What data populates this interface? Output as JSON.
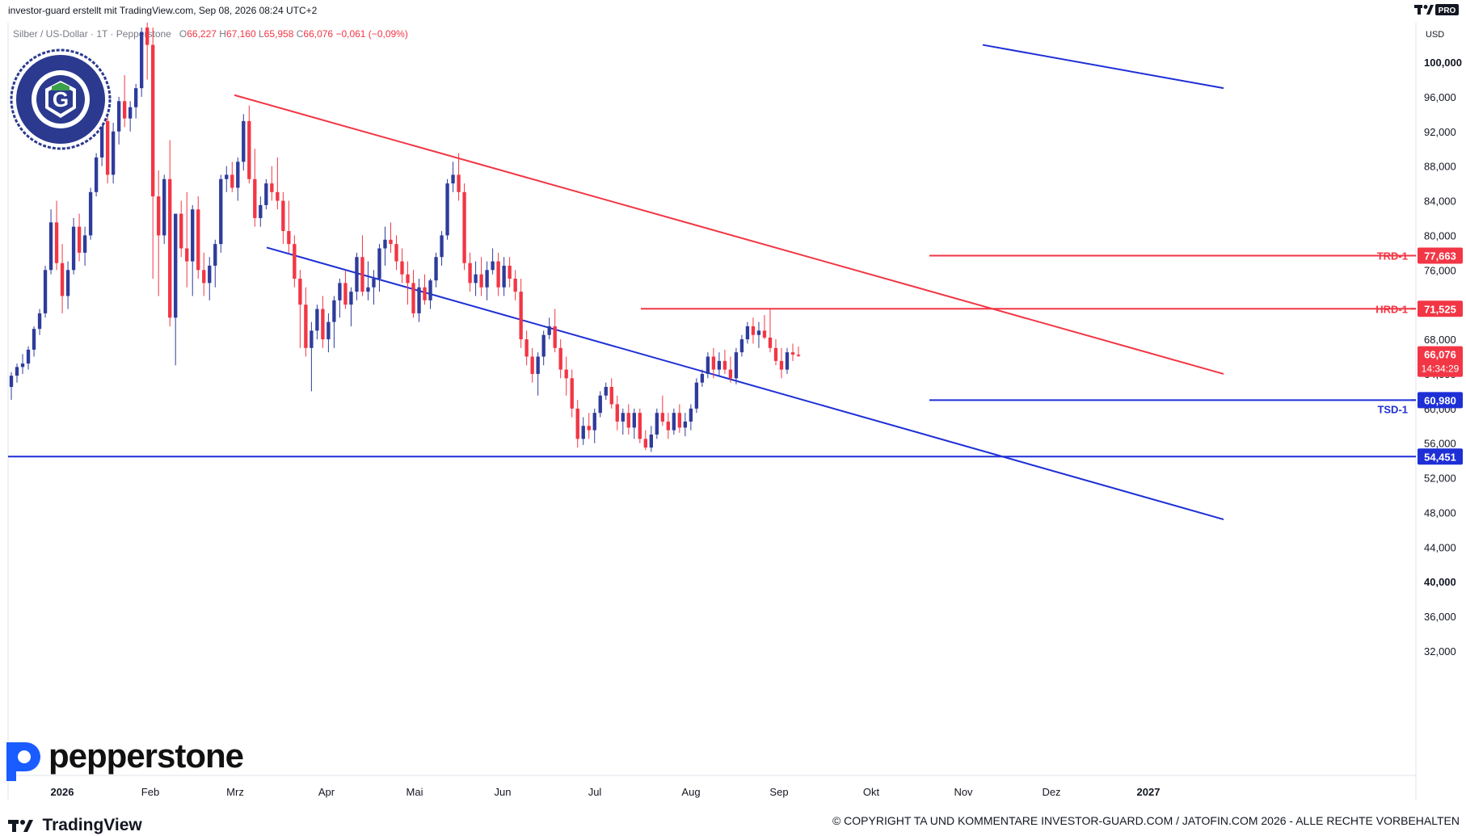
{
  "header": {
    "attribution": "investor-guard erstellt mit TradingView.com, Sep 08, 2026 08:24 UTC+2",
    "symbol": "Silber / US-Dollar · 1T · Pepperstone",
    "ohlc": {
      "o_label": "O",
      "o": "66,227",
      "h_label": "H",
      "h": "67,160",
      "l_label": "L",
      "l": "65,958",
      "c_label": "C",
      "c": "66,076",
      "change": "−0,061 (−0,09%)"
    },
    "pro_badge": "PRO",
    "currency": "USD"
  },
  "branding": {
    "broker": "pepperstone",
    "platform": "TradingView",
    "badge_text": "COMPLIANCE CHECKED · INVESTOR-GUARD",
    "badge_letter": "G",
    "copyright": "© COPYRIGHT TA UND KOMMENTARE INVESTOR-GUARD.COM / JATOFIN.COM 2026 - ALLE RECHTE VORBEHALTEN"
  },
  "colors": {
    "up": "#2e3c9b",
    "down": "#f23645",
    "resistance": "#f23645",
    "support": "#1e2fd6",
    "grid_text": "#131722"
  },
  "chart_data": {
    "type": "candlestick",
    "ylim": [
      30000,
      102000
    ],
    "yticks": [
      "100,000",
      "96,000",
      "92,000",
      "88,000",
      "84,000",
      "80,000",
      "76,000",
      "72,000",
      "68,000",
      "64,000",
      "60,000",
      "56,000",
      "52,000",
      "48,000",
      "44,000",
      "40,000",
      "36,000",
      "32,000"
    ],
    "ytick_values": [
      100000,
      96000,
      92000,
      88000,
      84000,
      80000,
      76000,
      72000,
      68000,
      64000,
      60000,
      56000,
      52000,
      48000,
      44000,
      40000,
      36000,
      32000
    ],
    "xticks": [
      "2026",
      "Feb",
      "Mrz",
      "Apr",
      "Mai",
      "Jun",
      "Jul",
      "Aug",
      "Sep",
      "Okt",
      "Nov",
      "Dez",
      "2027"
    ],
    "levels": [
      {
        "name": "TRD-1",
        "value": 77663,
        "label": "77,663",
        "color": "#f23645",
        "start": "Jul"
      },
      {
        "name": "HRD-1",
        "value": 71525,
        "label": "71,525",
        "color": "#f23645",
        "start": "Jun"
      },
      {
        "name": "TSD-1",
        "value": 60980,
        "label": "60,980",
        "color": "#1e2fd6",
        "start": "Sep"
      },
      {
        "name": "",
        "value": 54451,
        "label": "54,451",
        "color": "#1e2fd6",
        "start": "2026"
      }
    ],
    "last_price": {
      "label": "66,076",
      "value": 66076,
      "countdown": "14:34:29",
      "color": "#f23645"
    },
    "trendlines": [
      {
        "name": "upper-channel",
        "color": "#1e2fd6",
        "points": [
          [
            1216,
            102000
          ],
          [
            1514,
            97000
          ]
        ]
      },
      {
        "name": "resistance-line",
        "color": "#f23645",
        "points": [
          [
            290,
            96200
          ],
          [
            1514,
            64000
          ]
        ]
      },
      {
        "name": "lower-channel",
        "color": "#1e2fd6",
        "points": [
          [
            330,
            78600
          ],
          [
            1514,
            47200
          ]
        ]
      }
    ],
    "candles_ohlc": [
      [
        62500,
        64200,
        61000,
        63800
      ],
      [
        63800,
        65200,
        63000,
        64800
      ],
      [
        64800,
        66300,
        64000,
        65200
      ],
      [
        65200,
        67200,
        64500,
        66800
      ],
      [
        66800,
        69500,
        66000,
        69200
      ],
      [
        69200,
        71500,
        68500,
        71000
      ],
      [
        71000,
        76500,
        70500,
        76000
      ],
      [
        76000,
        83000,
        75500,
        81500
      ],
      [
        81500,
        84000,
        76000,
        76800
      ],
      [
        76800,
        79000,
        71000,
        73000
      ],
      [
        73000,
        77000,
        71500,
        76000
      ],
      [
        76000,
        82000,
        75500,
        81000
      ],
      [
        81000,
        82500,
        77000,
        78000
      ],
      [
        78000,
        81000,
        76500,
        80000
      ],
      [
        80000,
        85500,
        79500,
        85000
      ],
      [
        85000,
        89500,
        84500,
        89000
      ],
      [
        89000,
        93500,
        88000,
        93200
      ],
      [
        93200,
        94000,
        86000,
        87000
      ],
      [
        87000,
        93000,
        86000,
        92000
      ],
      [
        92000,
        96000,
        90500,
        95500
      ],
      [
        95500,
        98500,
        92500,
        93500
      ],
      [
        93500,
        95500,
        92000,
        94800
      ],
      [
        94800,
        97500,
        93500,
        97000
      ],
      [
        97000,
        104000,
        96000,
        103500
      ],
      [
        104000,
        106000,
        98000,
        102000
      ],
      [
        102000,
        104000,
        75000,
        84500
      ],
      [
        84500,
        87500,
        73000,
        80000
      ],
      [
        80000,
        87000,
        79000,
        86500
      ],
      [
        86500,
        91000,
        69500,
        70500
      ],
      [
        70500,
        82000,
        65000,
        82500
      ],
      [
        82500,
        84000,
        77500,
        78500
      ],
      [
        78500,
        85000,
        74000,
        77000
      ],
      [
        77000,
        83500,
        73000,
        83000
      ],
      [
        83000,
        84500,
        75000,
        76000
      ],
      [
        76000,
        78000,
        73000,
        74500
      ],
      [
        74500,
        77500,
        72500,
        76500
      ],
      [
        76500,
        79500,
        74000,
        79000
      ],
      [
        79000,
        87000,
        78000,
        86500
      ],
      [
        86500,
        88000,
        85000,
        87000
      ],
      [
        87000,
        88500,
        85000,
        85500
      ],
      [
        85500,
        89000,
        84000,
        88500
      ],
      [
        88500,
        94000,
        87500,
        93200
      ],
      [
        93200,
        95000,
        86000,
        86500
      ],
      [
        86500,
        90000,
        81000,
        82000
      ],
      [
        82000,
        84500,
        81000,
        83500
      ],
      [
        83500,
        86500,
        83000,
        86000
      ],
      [
        86000,
        88000,
        84000,
        85000
      ],
      [
        85000,
        89000,
        83000,
        84000
      ],
      [
        84000,
        85000,
        79000,
        80500
      ],
      [
        80500,
        84000,
        78000,
        79000
      ],
      [
        79000,
        80000,
        74000,
        75000
      ],
      [
        75000,
        76000,
        67000,
        72000
      ],
      [
        72000,
        74000,
        66000,
        67000
      ],
      [
        67000,
        70000,
        62000,
        69000
      ],
      [
        69000,
        72000,
        68000,
        71500
      ],
      [
        71500,
        73000,
        67000,
        68000
      ],
      [
        68000,
        71000,
        66500,
        70000
      ],
      [
        70000,
        73000,
        67000,
        72500
      ],
      [
        72500,
        75000,
        70500,
        74500
      ],
      [
        74500,
        76000,
        71500,
        72000
      ],
      [
        72000,
        74000,
        69500,
        73500
      ],
      [
        73500,
        78000,
        72500,
        77500
      ],
      [
        77500,
        80000,
        73000,
        73500
      ],
      [
        73500,
        77000,
        72500,
        74000
      ],
      [
        74000,
        76000,
        72000,
        75000
      ],
      [
        75000,
        79000,
        73500,
        78500
      ],
      [
        78500,
        81000,
        76500,
        79500
      ],
      [
        79500,
        81500,
        78000,
        79000
      ],
      [
        79000,
        80000,
        76000,
        77000
      ],
      [
        77000,
        78500,
        74500,
        75500
      ],
      [
        75500,
        77000,
        72000,
        74500
      ],
      [
        74500,
        76000,
        70500,
        71000
      ],
      [
        71000,
        75000,
        70000,
        74000
      ],
      [
        74000,
        75500,
        72000,
        72500
      ],
      [
        72500,
        75000,
        71500,
        74800
      ],
      [
        74800,
        78000,
        74000,
        77500
      ],
      [
        77500,
        80500,
        76500,
        80000
      ],
      [
        80000,
        86500,
        79500,
        86000
      ],
      [
        86000,
        88500,
        85000,
        87000
      ],
      [
        87000,
        89500,
        84000,
        85000
      ],
      [
        85000,
        86000,
        76000,
        76800
      ],
      [
        76800,
        78000,
        73500,
        74500
      ],
      [
        74500,
        77000,
        73000,
        75500
      ],
      [
        75500,
        77500,
        73000,
        74000
      ],
      [
        74000,
        77000,
        72500,
        76000
      ],
      [
        76000,
        78500,
        75500,
        77000
      ],
      [
        77000,
        78000,
        73000,
        74000
      ],
      [
        74000,
        77500,
        73000,
        76500
      ],
      [
        76500,
        77500,
        74000,
        75000
      ],
      [
        75000,
        76000,
        72500,
        73500
      ],
      [
        73500,
        75000,
        67000,
        68000
      ],
      [
        68000,
        69000,
        65000,
        66000
      ],
      [
        66000,
        67000,
        63000,
        64000
      ],
      [
        64000,
        66500,
        61500,
        66000
      ],
      [
        66000,
        69000,
        65000,
        68500
      ],
      [
        68500,
        70500,
        68000,
        69500
      ],
      [
        69500,
        71500,
        66500,
        67000
      ],
      [
        67000,
        68000,
        63500,
        64500
      ],
      [
        64500,
        66000,
        61500,
        63500
      ],
      [
        63500,
        64500,
        59000,
        60000
      ],
      [
        60000,
        61000,
        55500,
        56500
      ],
      [
        56500,
        59000,
        55800,
        58000
      ],
      [
        58000,
        59500,
        56500,
        57500
      ],
      [
        57500,
        60000,
        56000,
        59500
      ],
      [
        59500,
        62000,
        59000,
        61500
      ],
      [
        61500,
        63000,
        61000,
        62500
      ],
      [
        62500,
        63500,
        60000,
        60500
      ],
      [
        60500,
        61500,
        57500,
        58500
      ],
      [
        58500,
        60000,
        57000,
        59500
      ],
      [
        59500,
        60500,
        57000,
        57800
      ],
      [
        57800,
        60000,
        56500,
        59500
      ],
      [
        59500,
        60000,
        56000,
        56500
      ],
      [
        56500,
        57500,
        55200,
        55500
      ],
      [
        55500,
        58000,
        55000,
        57000
      ],
      [
        57000,
        60000,
        56500,
        59500
      ],
      [
        59500,
        61500,
        58000,
        58500
      ],
      [
        58500,
        59500,
        56500,
        57500
      ],
      [
        57500,
        60000,
        57000,
        59500
      ],
      [
        59500,
        60500,
        57200,
        57800
      ],
      [
        57800,
        59500,
        56800,
        58500
      ],
      [
        58500,
        60500,
        57500,
        60000
      ],
      [
        60000,
        63500,
        59500,
        63000
      ],
      [
        63000,
        64500,
        62500,
        64000
      ],
      [
        64000,
        66500,
        63500,
        66000
      ],
      [
        66000,
        67000,
        63500,
        64500
      ],
      [
        64500,
        66500,
        63800,
        65500
      ],
      [
        65500,
        66800,
        64000,
        64500
      ],
      [
        64500,
        66000,
        63000,
        63500
      ],
      [
        63500,
        67000,
        62800,
        66500
      ],
      [
        66500,
        68500,
        66000,
        68000
      ],
      [
        68000,
        70000,
        67500,
        69500
      ],
      [
        69500,
        70500,
        67500,
        68500
      ],
      [
        68500,
        70000,
        67000,
        69000
      ],
      [
        69000,
        70800,
        68000,
        68200
      ],
      [
        68200,
        71500,
        66500,
        67000
      ],
      [
        67000,
        68000,
        65000,
        65500
      ],
      [
        65500,
        67000,
        63500,
        64500
      ],
      [
        64500,
        67000,
        64000,
        66500
      ],
      [
        66500,
        67500,
        65500,
        66227
      ],
      [
        66227,
        67160,
        65958,
        66076
      ]
    ]
  }
}
